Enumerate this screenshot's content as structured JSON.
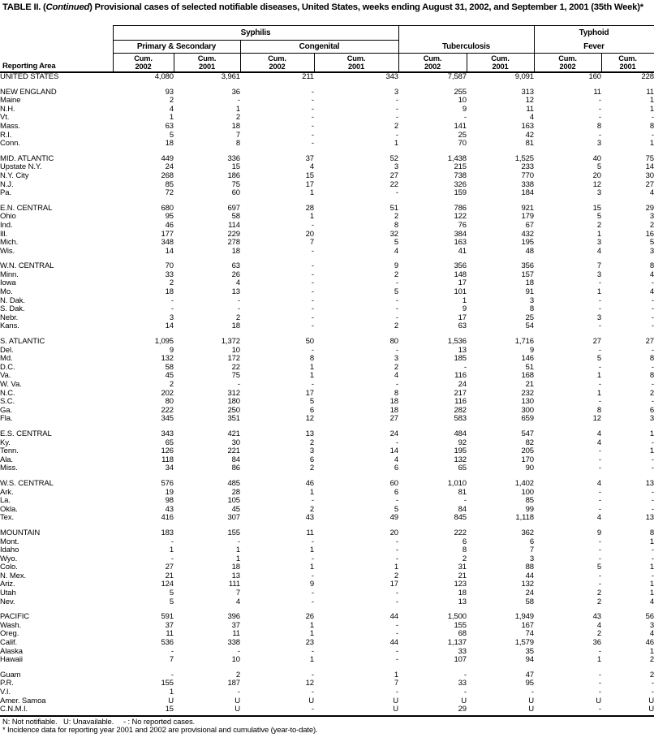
{
  "colors": {
    "text": "#000000",
    "background": "#ffffff",
    "rule": "#000000"
  },
  "title": {
    "prefix": "TABLE II. (",
    "continued": "Continued",
    "suffix": ") Provisional cases of selected notifiable diseases, United States, weeks ending August 31, 2002, and September 1, 2001 (35th Week)*"
  },
  "columns": {
    "reporting_area": "Reporting Area",
    "syphilis": "Syphilis",
    "primary_secondary": "Primary & Secondary",
    "congenital": "Congenital",
    "tuberculosis": "Tuberculosis",
    "typhoid_line1": "Typhoid",
    "typhoid_line2": "Fever",
    "cum": "Cum.",
    "y2002": "2002",
    "y2001": "2001"
  },
  "table": {
    "groups": [
      {
        "rows": [
          [
            "UNITED STATES",
            "4,080",
            "3,961",
            "211",
            "343",
            "7,587",
            "9,091",
            "160",
            "228"
          ]
        ]
      },
      {
        "rows": [
          [
            "NEW ENGLAND",
            "93",
            "36",
            "-",
            "3",
            "255",
            "313",
            "11",
            "11"
          ],
          [
            "Maine",
            "2",
            "-",
            "-",
            "-",
            "10",
            "12",
            "-",
            "1"
          ],
          [
            "N.H.",
            "4",
            "1",
            "-",
            "-",
            "9",
            "11",
            "-",
            "1"
          ],
          [
            "Vt.",
            "1",
            "2",
            "-",
            "-",
            "-",
            "4",
            "-",
            "-"
          ],
          [
            "Mass.",
            "63",
            "18",
            "-",
            "2",
            "141",
            "163",
            "8",
            "8"
          ],
          [
            "R.I.",
            "5",
            "7",
            "-",
            "-",
            "25",
            "42",
            "-",
            "-"
          ],
          [
            "Conn.",
            "18",
            "8",
            "-",
            "1",
            "70",
            "81",
            "3",
            "1"
          ]
        ]
      },
      {
        "rows": [
          [
            "MID. ATLANTIC",
            "449",
            "336",
            "37",
            "52",
            "1,438",
            "1,525",
            "40",
            "75"
          ],
          [
            "Upstate N.Y.",
            "24",
            "15",
            "4",
            "3",
            "215",
            "233",
            "5",
            "14"
          ],
          [
            "N.Y. City",
            "268",
            "186",
            "15",
            "27",
            "738",
            "770",
            "20",
            "30"
          ],
          [
            "N.J.",
            "85",
            "75",
            "17",
            "22",
            "326",
            "338",
            "12",
            "27"
          ],
          [
            "Pa.",
            "72",
            "60",
            "1",
            "-",
            "159",
            "184",
            "3",
            "4"
          ]
        ]
      },
      {
        "rows": [
          [
            "E.N. CENTRAL",
            "680",
            "697",
            "28",
            "51",
            "786",
            "921",
            "15",
            "29"
          ],
          [
            "Ohio",
            "95",
            "58",
            "1",
            "2",
            "122",
            "179",
            "5",
            "3"
          ],
          [
            "Ind.",
            "46",
            "114",
            "-",
            "8",
            "76",
            "67",
            "2",
            "2"
          ],
          [
            "Ill.",
            "177",
            "229",
            "20",
            "32",
            "384",
            "432",
            "1",
            "16"
          ],
          [
            "Mich.",
            "348",
            "278",
            "7",
            "5",
            "163",
            "195",
            "3",
            "5"
          ],
          [
            "Wis.",
            "14",
            "18",
            "-",
            "4",
            "41",
            "48",
            "4",
            "3"
          ]
        ]
      },
      {
        "rows": [
          [
            "W.N. CENTRAL",
            "70",
            "63",
            "-",
            "9",
            "356",
            "356",
            "7",
            "8"
          ],
          [
            "Minn.",
            "33",
            "26",
            "-",
            "2",
            "148",
            "157",
            "3",
            "4"
          ],
          [
            "Iowa",
            "2",
            "4",
            "-",
            "-",
            "17",
            "18",
            "-",
            "-"
          ],
          [
            "Mo.",
            "18",
            "13",
            "-",
            "5",
            "101",
            "91",
            "1",
            "4"
          ],
          [
            "N. Dak.",
            "-",
            "-",
            "-",
            "-",
            "1",
            "3",
            "-",
            "-"
          ],
          [
            "S. Dak.",
            "-",
            "-",
            "-",
            "-",
            "9",
            "8",
            "-",
            "-"
          ],
          [
            "Nebr.",
            "3",
            "2",
            "-",
            "-",
            "17",
            "25",
            "3",
            "-"
          ],
          [
            "Kans.",
            "14",
            "18",
            "-",
            "2",
            "63",
            "54",
            "-",
            "-"
          ]
        ]
      },
      {
        "rows": [
          [
            "S. ATLANTIC",
            "1,095",
            "1,372",
            "50",
            "80",
            "1,536",
            "1,716",
            "27",
            "27"
          ],
          [
            "Del.",
            "9",
            "10",
            "-",
            "-",
            "13",
            "9",
            "-",
            "-"
          ],
          [
            "Md.",
            "132",
            "172",
            "8",
            "3",
            "185",
            "146",
            "5",
            "8"
          ],
          [
            "D.C.",
            "58",
            "22",
            "1",
            "2",
            "-",
            "51",
            "-",
            "-"
          ],
          [
            "Va.",
            "45",
            "75",
            "1",
            "4",
            "116",
            "168",
            "1",
            "8"
          ],
          [
            "W. Va.",
            "2",
            "-",
            "-",
            "-",
            "24",
            "21",
            "-",
            "-"
          ],
          [
            "N.C.",
            "202",
            "312",
            "17",
            "8",
            "217",
            "232",
            "1",
            "2"
          ],
          [
            "S.C.",
            "80",
            "180",
            "5",
            "18",
            "116",
            "130",
            "-",
            "-"
          ],
          [
            "Ga.",
            "222",
            "250",
            "6",
            "18",
            "282",
            "300",
            "8",
            "6"
          ],
          [
            "Fla.",
            "345",
            "351",
            "12",
            "27",
            "583",
            "659",
            "12",
            "3"
          ]
        ]
      },
      {
        "rows": [
          [
            "E.S. CENTRAL",
            "343",
            "421",
            "13",
            "24",
            "484",
            "547",
            "4",
            "1"
          ],
          [
            "Ky.",
            "65",
            "30",
            "2",
            "-",
            "92",
            "82",
            "4",
            "-"
          ],
          [
            "Tenn.",
            "126",
            "221",
            "3",
            "14",
            "195",
            "205",
            "-",
            "1"
          ],
          [
            "Ala.",
            "118",
            "84",
            "6",
            "4",
            "132",
            "170",
            "-",
            "-"
          ],
          [
            "Miss.",
            "34",
            "86",
            "2",
            "6",
            "65",
            "90",
            "-",
            "-"
          ]
        ]
      },
      {
        "rows": [
          [
            "W.S. CENTRAL",
            "576",
            "485",
            "46",
            "60",
            "1,010",
            "1,402",
            "4",
            "13"
          ],
          [
            "Ark.",
            "19",
            "28",
            "1",
            "6",
            "81",
            "100",
            "-",
            "-"
          ],
          [
            "La.",
            "98",
            "105",
            "-",
            "-",
            "-",
            "85",
            "-",
            "-"
          ],
          [
            "Okla.",
            "43",
            "45",
            "2",
            "5",
            "84",
            "99",
            "-",
            "-"
          ],
          [
            "Tex.",
            "416",
            "307",
            "43",
            "49",
            "845",
            "1,118",
            "4",
            "13"
          ]
        ]
      },
      {
        "rows": [
          [
            "MOUNTAIN",
            "183",
            "155",
            "11",
            "20",
            "222",
            "362",
            "9",
            "8"
          ],
          [
            "Mont.",
            "-",
            "-",
            "-",
            "-",
            "6",
            "6",
            "-",
            "1"
          ],
          [
            "Idaho",
            "1",
            "1",
            "1",
            "-",
            "8",
            "7",
            "-",
            "-"
          ],
          [
            "Wyo.",
            "-",
            "1",
            "-",
            "-",
            "2",
            "3",
            "-",
            "-"
          ],
          [
            "Colo.",
            "27",
            "18",
            "1",
            "1",
            "31",
            "88",
            "5",
            "1"
          ],
          [
            "N. Mex.",
            "21",
            "13",
            "-",
            "2",
            "21",
            "44",
            "-",
            "-"
          ],
          [
            "Ariz.",
            "124",
            "111",
            "9",
            "17",
            "123",
            "132",
            "-",
            "1"
          ],
          [
            "Utah",
            "5",
            "7",
            "-",
            "-",
            "18",
            "24",
            "2",
            "1"
          ],
          [
            "Nev.",
            "5",
            "4",
            "-",
            "-",
            "13",
            "58",
            "2",
            "4"
          ]
        ]
      },
      {
        "rows": [
          [
            "PACIFIC",
            "591",
            "396",
            "26",
            "44",
            "1,500",
            "1,949",
            "43",
            "56"
          ],
          [
            "Wash.",
            "37",
            "37",
            "1",
            "-",
            "155",
            "167",
            "4",
            "3"
          ],
          [
            "Oreg.",
            "11",
            "11",
            "1",
            "-",
            "68",
            "74",
            "2",
            "4"
          ],
          [
            "Calif.",
            "536",
            "338",
            "23",
            "44",
            "1,137",
            "1,579",
            "36",
            "46"
          ],
          [
            "Alaska",
            "-",
            "-",
            "-",
            "-",
            "33",
            "35",
            "-",
            "1"
          ],
          [
            "Hawaii",
            "7",
            "10",
            "1",
            "-",
            "107",
            "94",
            "1",
            "2"
          ]
        ]
      },
      {
        "rows": [
          [
            "Guam",
            "-",
            "2",
            "-",
            "1",
            "-",
            "47",
            "-",
            "2"
          ],
          [
            "P.R.",
            "155",
            "187",
            "12",
            "7",
            "33",
            "95",
            "-",
            "-"
          ],
          [
            "V.I.",
            "1",
            "-",
            "-",
            "-",
            "-",
            "-",
            "-",
            "-"
          ],
          [
            "Amer. Samoa",
            "U",
            "U",
            "U",
            "U",
            "U",
            "U",
            "U",
            "U"
          ],
          [
            "C.N.M.I.",
            "15",
            "U",
            "-",
            "U",
            "29",
            "U",
            "-",
            "U"
          ]
        ]
      }
    ]
  },
  "footnotes": {
    "n": "N: Not notifiable.",
    "u": "U: Unavailable.",
    "dash": "- : No reported cases.",
    "star": "* Incidence data for reporting year 2001 and 2002 are provisional and cumulative (year-to-date)."
  }
}
